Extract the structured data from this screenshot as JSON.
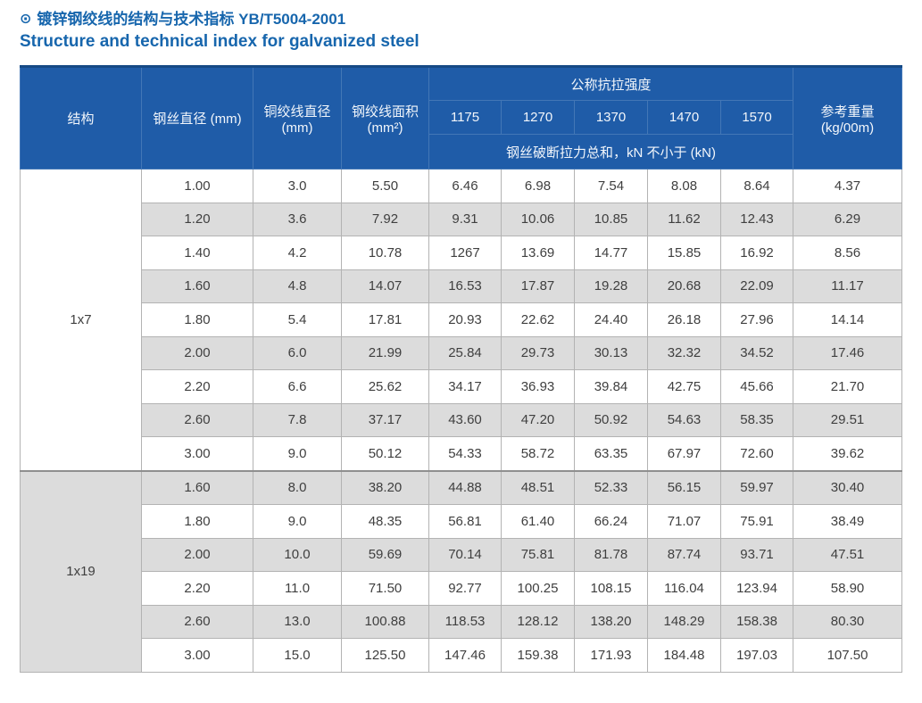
{
  "page": {
    "title_icon": "⊙",
    "title_zh": "镀锌钢绞线的结构与技术指标 YB/T5004-2001",
    "title_en": "Structure and technical index for galvanized steel"
  },
  "colors": {
    "title_blue": "#1766ad",
    "header_blue": "#1f5ca8",
    "header_border_blue": "#4377b6",
    "stripe_gray": "#dcdcdc",
    "grid_gray": "#b3b3b3",
    "top_border_navy": "#164a85"
  },
  "table": {
    "header": {
      "structure": "结构",
      "wire_diameter": "钢丝直径 (mm)",
      "strand_diameter": "铜绞线直径 (mm)",
      "strand_area": "钢绞线面积 (mm²)",
      "tensile_group": "公称抗拉强度",
      "grades": [
        "1175",
        "1270",
        "1370",
        "1470",
        "1570"
      ],
      "breaking_note": "钢丝破断拉力总和，kN 不小于 (kN)",
      "ref_weight": "参考重量 (kg/00m)"
    },
    "groups": [
      {
        "structure": "1x7",
        "rows": [
          [
            "1.00",
            "3.0",
            "5.50",
            "6.46",
            "6.98",
            "7.54",
            "8.08",
            "8.64",
            "4.37"
          ],
          [
            "1.20",
            "3.6",
            "7.92",
            "9.31",
            "10.06",
            "10.85",
            "11.62",
            "12.43",
            "6.29"
          ],
          [
            "1.40",
            "4.2",
            "10.78",
            "1267",
            "13.69",
            "14.77",
            "15.85",
            "16.92",
            "8.56"
          ],
          [
            "1.60",
            "4.8",
            "14.07",
            "16.53",
            "17.87",
            "19.28",
            "20.68",
            "22.09",
            "11.17"
          ],
          [
            "1.80",
            "5.4",
            "17.81",
            "20.93",
            "22.62",
            "24.40",
            "26.18",
            "27.96",
            "14.14"
          ],
          [
            "2.00",
            "6.0",
            "21.99",
            "25.84",
            "29.73",
            "30.13",
            "32.32",
            "34.52",
            "17.46"
          ],
          [
            "2.20",
            "6.6",
            "25.62",
            "34.17",
            "36.93",
            "39.84",
            "42.75",
            "45.66",
            "21.70"
          ],
          [
            "2.60",
            "7.8",
            "37.17",
            "43.60",
            "47.20",
            "50.92",
            "54.63",
            "58.35",
            "29.51"
          ],
          [
            "3.00",
            "9.0",
            "50.12",
            "54.33",
            "58.72",
            "63.35",
            "67.97",
            "72.60",
            "39.62"
          ]
        ]
      },
      {
        "structure": "1x19",
        "rows": [
          [
            "1.60",
            "8.0",
            "38.20",
            "44.88",
            "48.51",
            "52.33",
            "56.15",
            "59.97",
            "30.40"
          ],
          [
            "1.80",
            "9.0",
            "48.35",
            "56.81",
            "61.40",
            "66.24",
            "71.07",
            "75.91",
            "38.49"
          ],
          [
            "2.00",
            "10.0",
            "59.69",
            "70.14",
            "75.81",
            "81.78",
            "87.74",
            "93.71",
            "47.51"
          ],
          [
            "2.20",
            "11.0",
            "71.50",
            "92.77",
            "100.25",
            "108.15",
            "116.04",
            "123.94",
            "58.90"
          ],
          [
            "2.60",
            "13.0",
            "100.88",
            "118.53",
            "128.12",
            "138.20",
            "148.29",
            "158.38",
            "80.30"
          ],
          [
            "3.00",
            "15.0",
            "125.50",
            "147.46",
            "159.38",
            "171.93",
            "184.48",
            "197.03",
            "107.50"
          ]
        ]
      }
    ]
  }
}
